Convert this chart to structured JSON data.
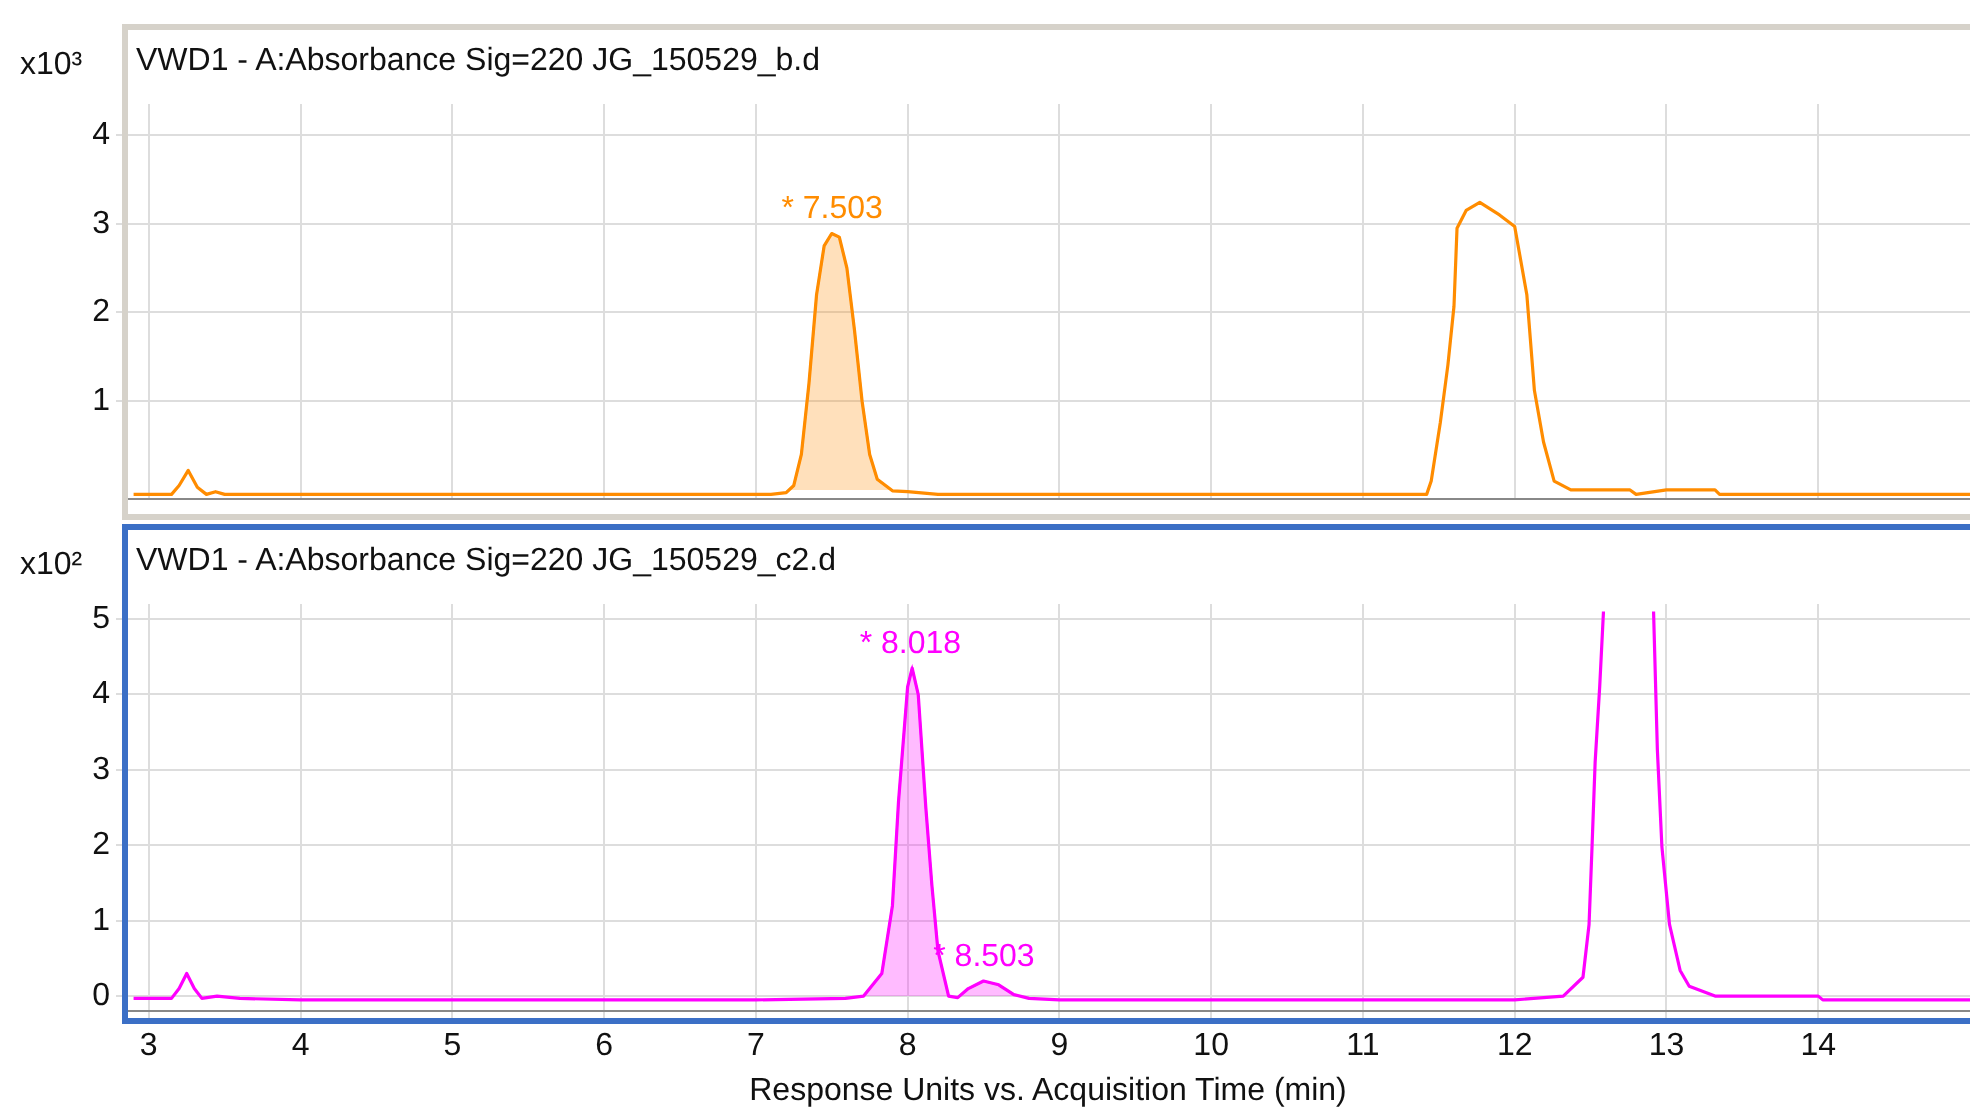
{
  "chart_data": [
    {
      "type": "line",
      "title": "VWD1 - A:Absorbance Sig=220 JG_150529_b.d",
      "ylabel": "x10³",
      "xlim": [
        2.85,
        15
      ],
      "xticks": [
        3,
        4,
        5,
        6,
        7,
        8,
        9,
        10,
        11,
        12,
        13,
        14
      ],
      "ylim": [
        -0.1,
        4.35
      ],
      "yticks": [
        1,
        2,
        3,
        4
      ],
      "tick_labels": "y",
      "grid": true,
      "legend": false,
      "marker": "none",
      "line_style": "solid",
      "series": [
        {
          "color": "#ff8c00",
          "x": [
            2.9,
            3.15,
            3.2,
            3.26,
            3.32,
            3.38,
            3.44,
            3.5,
            7.1,
            7.2,
            7.25,
            7.3,
            7.35,
            7.4,
            7.45,
            7.5,
            7.55,
            7.6,
            7.65,
            7.7,
            7.75,
            7.8,
            7.9,
            8.0,
            8.2,
            11.42,
            11.45,
            11.51,
            11.56,
            11.6,
            11.62,
            11.68,
            11.77,
            11.9,
            12.0,
            12.08,
            12.13,
            12.19,
            12.26,
            12.37,
            12.76,
            12.8,
            13.0,
            13.32,
            13.35,
            15
          ],
          "values": [
            -0.05,
            -0.05,
            0.05,
            0.22,
            0.03,
            -0.05,
            -0.02,
            -0.05,
            -0.05,
            -0.03,
            0.05,
            0.4,
            1.2,
            2.2,
            2.75,
            2.89,
            2.85,
            2.5,
            1.8,
            1.0,
            0.4,
            0.12,
            -0.01,
            -0.02,
            -0.05,
            -0.05,
            0.1,
            0.76,
            1.41,
            2.07,
            2.95,
            3.15,
            3.24,
            3.1,
            2.97,
            2.2,
            1.12,
            0.54,
            0.1,
            0.0,
            0.0,
            -0.05,
            0.0,
            0.0,
            -0.05,
            -0.05
          ]
        },
        {
          "type": "area",
          "color": "#ff8c00",
          "x": [
            7.2,
            7.25,
            7.3,
            7.35,
            7.4,
            7.45,
            7.5,
            7.55,
            7.6,
            7.65,
            7.7,
            7.75,
            7.8,
            7.9
          ],
          "values": [
            -0.03,
            0.05,
            0.4,
            1.2,
            2.2,
            2.75,
            2.89,
            2.85,
            2.5,
            1.8,
            1.0,
            0.4,
            0.12,
            -0.01
          ]
        }
      ],
      "annotations": [
        {
          "text": "* 7.503",
          "x": 7.503,
          "y": 2.89
        }
      ]
    },
    {
      "type": "line",
      "title": "VWD1 - A:Absorbance Sig=220 JG_150529_c2.d",
      "ylabel": "x10²",
      "xlabel": "Response Units vs. Acquisition Time (min)",
      "xlim": [
        2.85,
        15
      ],
      "xticks": [
        3,
        4,
        5,
        6,
        7,
        8,
        9,
        10,
        11,
        12,
        13,
        14
      ],
      "ylim": [
        -0.2,
        5.2
      ],
      "yticks": [
        0,
        1,
        2,
        3,
        4,
        5
      ],
      "grid": true,
      "legend": false,
      "marker": "none",
      "line_style": "solid",
      "series": [
        {
          "color": "#ff00ff",
          "x": [
            2.9,
            3.15,
            3.2,
            3.25,
            3.3,
            3.35,
            3.45,
            3.6,
            4.0,
            5.0,
            6.0,
            7.0,
            7.59,
            7.71,
            7.83,
            7.9,
            7.94,
            8.0,
            8.03,
            8.07,
            8.12,
            8.16,
            8.2,
            8.27,
            8.33,
            8.4,
            8.5,
            8.6,
            8.7,
            8.8,
            9.0,
            10.0,
            11.0,
            12.0,
            12.32,
            12.45,
            12.49,
            12.51,
            12.53,
            12.56,
            12.585,
            12.75,
            12.915,
            12.94,
            12.97,
            13.02,
            13.09,
            13.15,
            13.32,
            14.0,
            14.03,
            15
          ],
          "values": [
            -0.03,
            -0.03,
            0.1,
            0.3,
            0.1,
            -0.03,
            0.0,
            -0.03,
            -0.05,
            -0.05,
            -0.05,
            -0.05,
            -0.03,
            0.0,
            0.3,
            1.2,
            2.58,
            4.1,
            4.35,
            4.0,
            2.5,
            1.47,
            0.6,
            0.0,
            -0.02,
            0.1,
            0.2,
            0.15,
            0.02,
            -0.03,
            -0.05,
            -0.05,
            -0.05,
            -0.05,
            0.0,
            0.25,
            0.95,
            2.0,
            3.1,
            4.1,
            5.1,
            null,
            5.1,
            3.27,
            1.98,
            0.95,
            0.34,
            0.13,
            0.0,
            0.0,
            -0.05,
            -0.05
          ]
        },
        {
          "type": "area",
          "color": "#ff00ff",
          "x": [
            7.71,
            7.83,
            7.9,
            7.94,
            8.0,
            8.03,
            8.07,
            8.12,
            8.16,
            8.2,
            8.27
          ],
          "values": [
            0.0,
            0.3,
            1.2,
            2.58,
            4.1,
            4.35,
            4.0,
            2.5,
            1.47,
            0.6,
            0.0
          ]
        },
        {
          "type": "area",
          "color": "#ff00ff",
          "x": [
            8.33,
            8.4,
            8.5,
            8.6,
            8.7
          ],
          "values": [
            -0.02,
            0.1,
            0.2,
            0.15,
            0.02
          ]
        }
      ],
      "annotations": [
        {
          "text": "* 8.018",
          "x": 8.018,
          "y": 4.35
        },
        {
          "text": "* 8.503",
          "x": 8.503,
          "y": 0.2
        }
      ]
    }
  ]
}
